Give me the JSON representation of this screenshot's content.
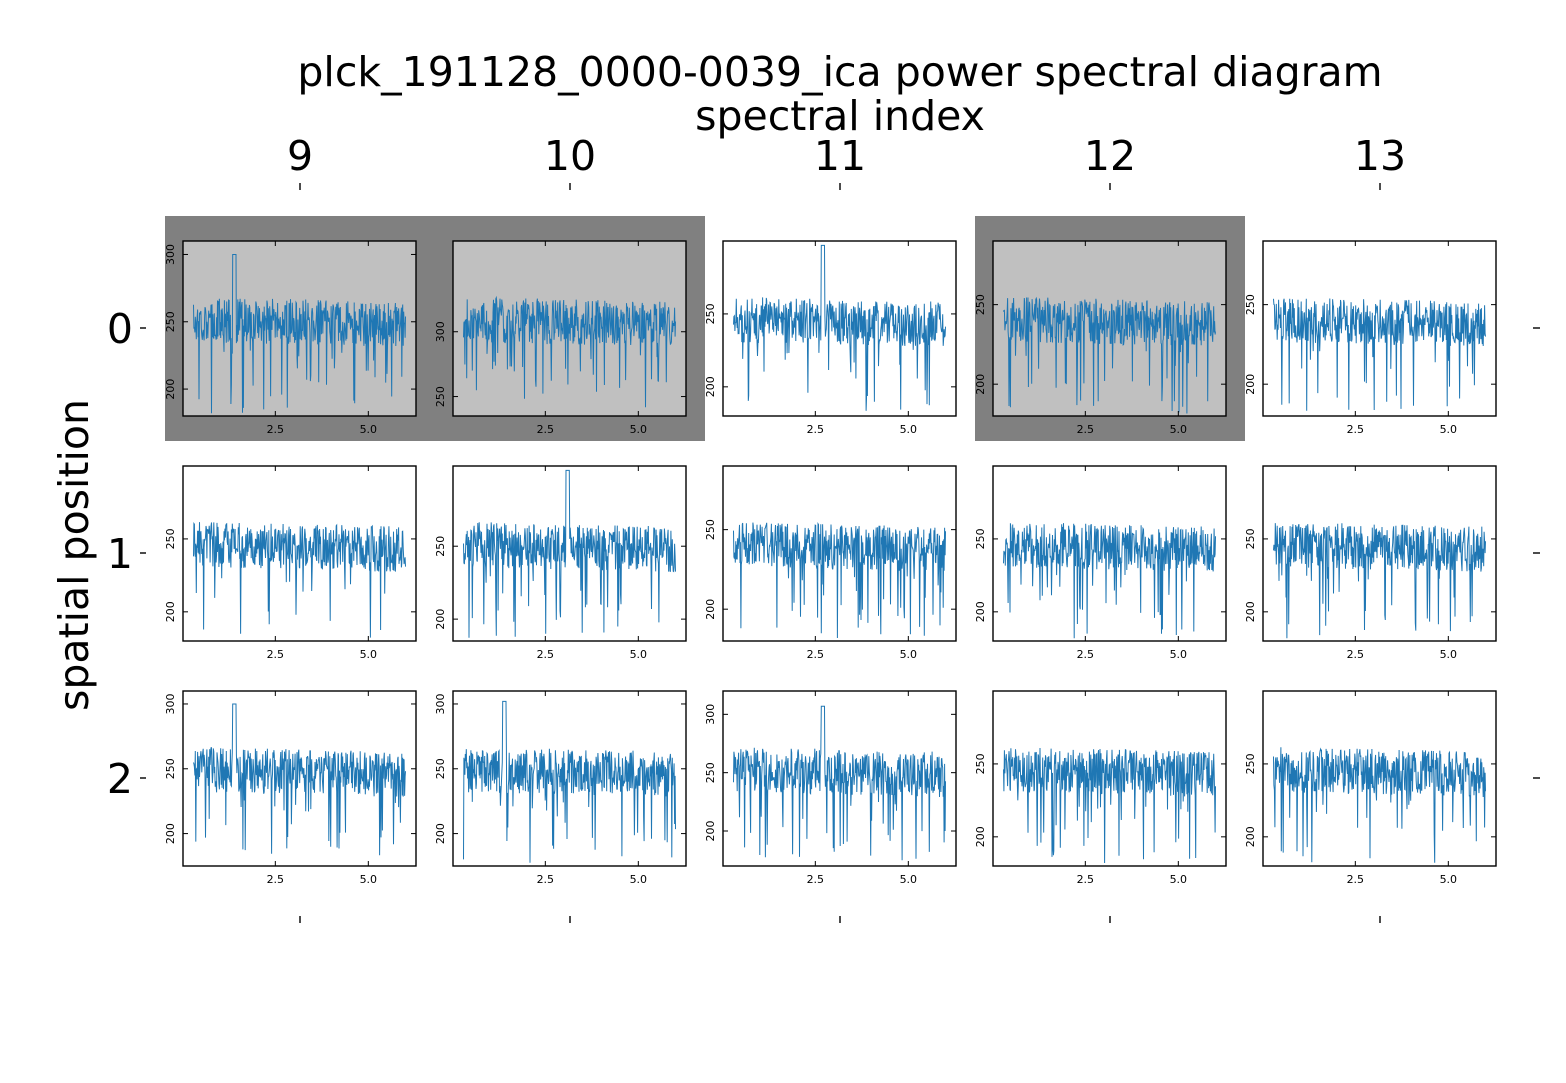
{
  "chart_data": {
    "type": "line",
    "title": "plck_191128_0000-0039_ica power spectral diagram",
    "column_axis_label": "spectral index",
    "row_axis_label": "spatial position",
    "column_labels": [
      "9",
      "10",
      "11",
      "12",
      "13"
    ],
    "row_labels": [
      "0",
      "1",
      "2"
    ],
    "line_color": "#1f77b4",
    "highlight_frame_color": "#808080",
    "highlight_face_color": "#c0c0c0",
    "x_range": [
      0.3,
      6.0
    ],
    "x_ticks": [
      2.5,
      5.0
    ],
    "x_tick_labels": [
      "2.5",
      "5.0"
    ],
    "panels": [
      {
        "row": 0,
        "col": 0,
        "highlighted": true,
        "ylim": [
          180,
          310
        ],
        "yticks": [
          200,
          250,
          300
        ],
        "ytick_labels": [
          "200",
          "250",
          "300"
        ],
        "spikes": [
          {
            "x": 1.4,
            "y": 300
          }
        ]
      },
      {
        "row": 0,
        "col": 1,
        "highlighted": true,
        "ylim": [
          235,
          370
        ],
        "yticks": [
          250,
          300
        ],
        "ytick_labels": [
          "250",
          "300"
        ],
        "spikes": []
      },
      {
        "row": 0,
        "col": 2,
        "highlighted": false,
        "ylim": [
          180,
          300
        ],
        "yticks": [
          200,
          250
        ],
        "ytick_labels": [
          "200",
          "250"
        ],
        "spikes": [
          {
            "x": 2.7,
            "y": 297
          }
        ]
      },
      {
        "row": 0,
        "col": 3,
        "highlighted": true,
        "ylim": [
          180,
          290
        ],
        "yticks": [
          200,
          250
        ],
        "ytick_labels": [
          "200",
          "250"
        ],
        "spikes": []
      },
      {
        "row": 0,
        "col": 4,
        "highlighted": false,
        "ylim": [
          180,
          290
        ],
        "yticks": [
          200,
          250
        ],
        "ytick_labels": [
          "200",
          "250"
        ],
        "spikes": []
      },
      {
        "row": 1,
        "col": 0,
        "highlighted": false,
        "ylim": [
          180,
          300
        ],
        "yticks": [
          200,
          250
        ],
        "ytick_labels": [
          "200",
          "250"
        ],
        "spikes": []
      },
      {
        "row": 1,
        "col": 1,
        "highlighted": false,
        "ylim": [
          185,
          305
        ],
        "yticks": [
          200,
          250
        ],
        "ytick_labels": [
          "200",
          "250"
        ],
        "spikes": [
          {
            "x": 3.1,
            "y": 302
          }
        ]
      },
      {
        "row": 1,
        "col": 2,
        "highlighted": false,
        "ylim": [
          180,
          290
        ],
        "yticks": [
          200,
          250
        ],
        "ytick_labels": [
          "200",
          "250"
        ],
        "spikes": []
      },
      {
        "row": 1,
        "col": 3,
        "highlighted": false,
        "ylim": [
          180,
          300
        ],
        "yticks": [
          200,
          250
        ],
        "ytick_labels": [
          "200",
          "250"
        ],
        "spikes": []
      },
      {
        "row": 1,
        "col": 4,
        "highlighted": false,
        "ylim": [
          180,
          300
        ],
        "yticks": [
          200,
          250
        ],
        "ytick_labels": [
          "200",
          "250"
        ],
        "spikes": []
      },
      {
        "row": 2,
        "col": 0,
        "highlighted": false,
        "ylim": [
          175,
          310
        ],
        "yticks": [
          200,
          250,
          300
        ],
        "ytick_labels": [
          "200",
          "250",
          "300"
        ],
        "spikes": [
          {
            "x": 1.4,
            "y": 300
          }
        ]
      },
      {
        "row": 2,
        "col": 1,
        "highlighted": false,
        "ylim": [
          175,
          310
        ],
        "yticks": [
          200,
          250,
          300
        ],
        "ytick_labels": [
          "200",
          "250",
          "300"
        ],
        "spikes": [
          {
            "x": 1.4,
            "y": 302
          }
        ]
      },
      {
        "row": 2,
        "col": 2,
        "highlighted": false,
        "ylim": [
          170,
          320
        ],
        "yticks": [
          200,
          250,
          300
        ],
        "ytick_labels": [
          "200",
          "250",
          "300"
        ],
        "spikes": [
          {
            "x": 2.7,
            "y": 307
          }
        ]
      },
      {
        "row": 2,
        "col": 3,
        "highlighted": false,
        "ylim": [
          180,
          300
        ],
        "yticks": [
          200,
          250
        ],
        "ytick_labels": [
          "200",
          "250"
        ],
        "spikes": []
      },
      {
        "row": 2,
        "col": 4,
        "highlighted": false,
        "ylim": [
          180,
          300
        ],
        "yticks": [
          200,
          250
        ],
        "ytick_labels": [
          "200",
          "250"
        ],
        "spikes": []
      }
    ]
  }
}
